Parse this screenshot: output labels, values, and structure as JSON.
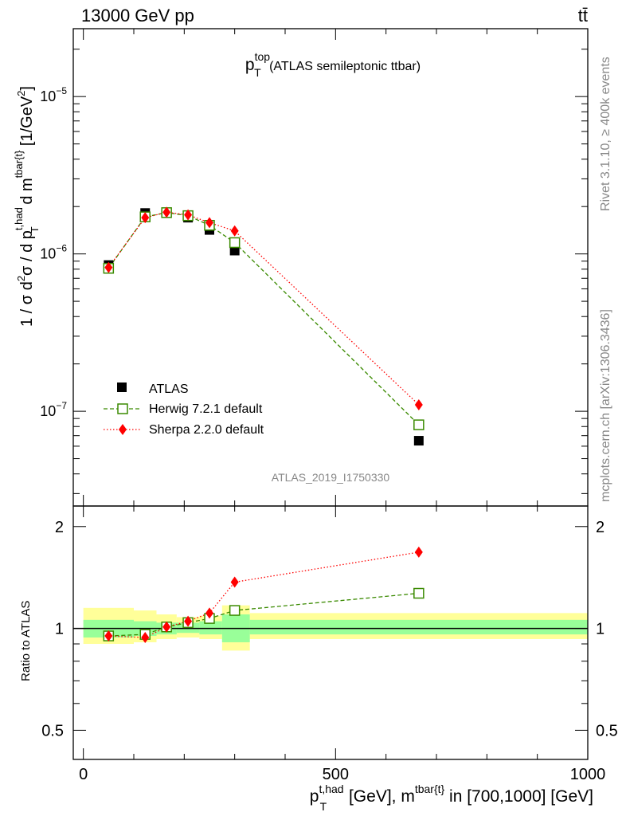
{
  "header": {
    "left": "13000 GeV pp",
    "right": "tt̄"
  },
  "side_labels": {
    "rivet": "Rivet 3.1.10, ≥ 400k events",
    "mcplots": "mcplots.cern.ch [arXiv:1306.3436]"
  },
  "chart_data": [
    {
      "type": "scatter",
      "title_main": "p",
      "title_sup": "top",
      "title_sub": "T",
      "title_rest": " (ATLAS semileptonic ttbar)",
      "watermark": "ATLAS_2019_I1750330",
      "ylabel_pre": "1 / σ d",
      "ylabel_sup2": "2",
      "ylabel_mid": "σ / d p",
      "ylabel_sup_thad": "t,had",
      "ylabel_sub_T": "T",
      "ylabel_mid2": " d m",
      "ylabel_sup_tbar": "tbar{t}",
      "ylabel_unit": " [1/GeV",
      "ylabel_unit_sup": "2",
      "ylabel_unit_end": "]",
      "yscale": "log",
      "ylim": [
        2.5e-08,
        2.7e-05
      ],
      "xlim": [
        -20,
        1000
      ],
      "yticks": [
        {
          "value": 1e-07,
          "label": "10",
          "exp": "−7"
        },
        {
          "value": 1e-06,
          "label": "10",
          "exp": "−6"
        },
        {
          "value": 1e-05,
          "label": "10",
          "exp": "−5"
        }
      ],
      "legend_position": "lower-left",
      "series": [
        {
          "name": "ATLAS",
          "color": "#000000",
          "marker": "square-filled",
          "x": [
            50,
            122.5,
            165,
            207.5,
            250,
            300,
            665
          ],
          "y": [
            8.5e-07,
            1.82e-06,
            1.82e-06,
            1.7e-06,
            1.42e-06,
            1.05e-06,
            6.5e-08
          ]
        },
        {
          "name": "Herwig 7.2.1 default",
          "color": "#3a8a00",
          "marker": "square-open",
          "line": "dashed",
          "x": [
            50,
            122.5,
            165,
            207.5,
            250,
            300,
            665
          ],
          "y": [
            8.1e-07,
            1.72e-06,
            1.83e-06,
            1.75e-06,
            1.52e-06,
            1.18e-06,
            8.2e-08
          ]
        },
        {
          "name": "Sherpa 2.2.0 default",
          "color": "#ff0000",
          "marker": "diamond-filled",
          "line": "dotted",
          "x": [
            50,
            122.5,
            165,
            207.5,
            250,
            300,
            665
          ],
          "y": [
            8.2e-07,
            1.7e-06,
            1.84e-06,
            1.77e-06,
            1.58e-06,
            1.4e-06,
            1.1e-07
          ]
        }
      ]
    },
    {
      "type": "scatter",
      "ylabel": "Ratio to ATLAS",
      "yscale": "log",
      "ylim": [
        0.41,
        2.3
      ],
      "xlim": [
        -20,
        1000
      ],
      "xlabel_main": "p",
      "xlabel_sup": "t,had",
      "xlabel_sub": "T",
      "xlabel_mid": " [GeV], m",
      "xlabel_sup2": "tbar{t}",
      "xlabel_end": " in [700,1000] [GeV]",
      "xticks": [
        {
          "value": 0,
          "label": "0"
        },
        {
          "value": 500,
          "label": "500"
        },
        {
          "value": 1000,
          "label": "1000"
        }
      ],
      "yticks": [
        {
          "value": 0.5,
          "label": "0.5"
        },
        {
          "value": 1,
          "label": "1"
        },
        {
          "value": 2,
          "label": "2"
        }
      ],
      "reference_line": 1,
      "bands": [
        {
          "x0": 0,
          "x1": 100,
          "y_stat": [
            0.94,
            1.06
          ],
          "y_tot": [
            0.9,
            1.15
          ]
        },
        {
          "x0": 100,
          "x1": 145,
          "y_stat": [
            0.95,
            1.05
          ],
          "y_tot": [
            0.91,
            1.13
          ]
        },
        {
          "x0": 145,
          "x1": 185,
          "y_stat": [
            0.96,
            1.04
          ],
          "y_tot": [
            0.93,
            1.1
          ]
        },
        {
          "x0": 185,
          "x1": 230,
          "y_stat": [
            0.97,
            1.04
          ],
          "y_tot": [
            0.94,
            1.08
          ]
        },
        {
          "x0": 230,
          "x1": 275,
          "y_stat": [
            0.96,
            1.05
          ],
          "y_tot": [
            0.93,
            1.09
          ]
        },
        {
          "x0": 275,
          "x1": 330,
          "y_stat": [
            0.91,
            1.1
          ],
          "y_tot": [
            0.86,
            1.17
          ]
        },
        {
          "x0": 330,
          "x1": 1000,
          "y_stat": [
            0.96,
            1.06
          ],
          "y_tot": [
            0.93,
            1.11
          ]
        }
      ],
      "series": [
        {
          "name": "Herwig 7.2.1 default",
          "color": "#3a8a00",
          "marker": "square-open",
          "line": "dashed",
          "x": [
            50,
            122.5,
            165,
            207.5,
            250,
            300,
            665
          ],
          "y": [
            0.95,
            0.96,
            1.01,
            1.04,
            1.07,
            1.13,
            1.27
          ]
        },
        {
          "name": "Sherpa 2.2.0 default",
          "color": "#ff0000",
          "marker": "diamond-filled",
          "line": "dotted",
          "x": [
            50,
            122.5,
            165,
            207.5,
            250,
            300,
            665
          ],
          "y": [
            0.95,
            0.94,
            1.01,
            1.05,
            1.11,
            1.37,
            1.68
          ]
        }
      ]
    }
  ]
}
